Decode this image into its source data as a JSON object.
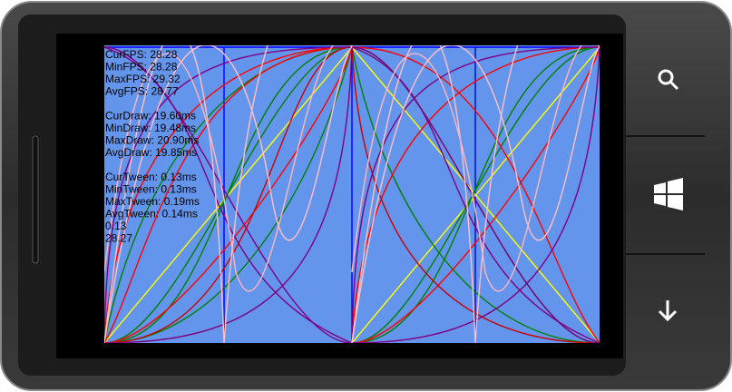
{
  "stats": {
    "fps": [
      "CurFPS: 28.28",
      "MinFPS: 28.28",
      "MaxFPS: 29.32",
      "AvgFPS: 28.77"
    ],
    "draw": [
      "CurDraw: 19.60ms",
      "MinDraw: 19.48ms",
      "MaxDraw: 20.90ms",
      "AvgDraw: 19.85ms"
    ],
    "tween": [
      "CurTween: 0.13ms",
      "MinTween: 0.13ms",
      "MaxTween: 0.19ms",
      "AvgTween: 0.14ms"
    ],
    "extra": [
      "0.13",
      "28.27"
    ]
  }
}
